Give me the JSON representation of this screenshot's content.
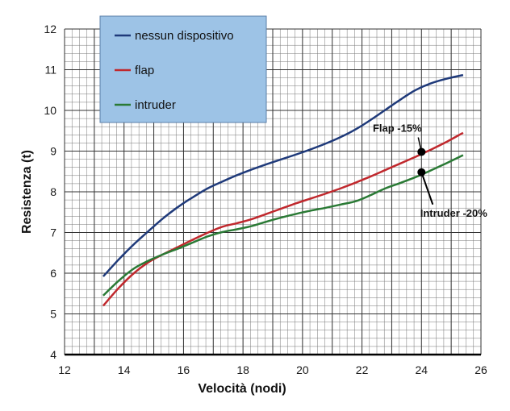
{
  "chart_data": {
    "type": "line",
    "title": "",
    "xlabel": "Velocità  (nodi)",
    "ylabel": "Resistenza (t)",
    "xlim": [
      12,
      26
    ],
    "ylim": [
      4,
      12
    ],
    "xticks": [
      12,
      14,
      16,
      18,
      20,
      22,
      24,
      26
    ],
    "yticks": [
      4,
      5,
      6,
      7,
      8,
      9,
      10,
      11,
      12
    ],
    "grid": true,
    "legend_position": "top-left",
    "series": [
      {
        "name": "nessun dispositivo",
        "color": "#1f3a7a",
        "x": [
          13.3,
          13.8,
          14.3,
          14.8,
          15.3,
          15.8,
          16.3,
          16.8,
          17.3,
          17.8,
          18.3,
          18.8,
          19.3,
          19.8,
          20.3,
          20.8,
          21.3,
          21.8,
          22.3,
          22.8,
          23.3,
          23.8,
          24.3,
          24.8,
          25.4
        ],
        "y": [
          5.92,
          6.32,
          6.69,
          7.02,
          7.34,
          7.62,
          7.86,
          8.08,
          8.25,
          8.41,
          8.55,
          8.68,
          8.8,
          8.92,
          9.05,
          9.19,
          9.35,
          9.54,
          9.77,
          10.02,
          10.27,
          10.5,
          10.66,
          10.77,
          10.87
        ]
      },
      {
        "name": "flap",
        "color": "#c0282d",
        "x": [
          13.3,
          13.8,
          14.3,
          14.8,
          15.3,
          15.8,
          16.3,
          16.8,
          17.3,
          17.8,
          18.3,
          18.8,
          19.3,
          19.8,
          20.3,
          20.8,
          21.3,
          21.8,
          22.3,
          22.8,
          23.3,
          23.8,
          24.3,
          24.8,
          25.4
        ],
        "y": [
          5.2,
          5.62,
          5.98,
          6.26,
          6.46,
          6.64,
          6.82,
          6.99,
          7.14,
          7.23,
          7.33,
          7.46,
          7.59,
          7.72,
          7.84,
          7.96,
          8.09,
          8.23,
          8.38,
          8.54,
          8.7,
          8.86,
          9.03,
          9.21,
          9.45
        ]
      },
      {
        "name": "intruder",
        "color": "#2a7a35",
        "x": [
          13.3,
          13.8,
          14.3,
          14.8,
          15.3,
          15.8,
          16.3,
          16.8,
          17.3,
          17.8,
          18.3,
          18.8,
          19.3,
          19.8,
          20.3,
          20.8,
          21.3,
          21.8,
          22.3,
          22.8,
          23.3,
          23.8,
          24.3,
          24.8,
          25.4
        ],
        "y": [
          5.45,
          5.8,
          6.1,
          6.3,
          6.46,
          6.6,
          6.75,
          6.9,
          7.01,
          7.08,
          7.16,
          7.27,
          7.37,
          7.46,
          7.54,
          7.61,
          7.69,
          7.77,
          7.92,
          8.09,
          8.22,
          8.36,
          8.52,
          8.69,
          8.9
        ]
      }
    ],
    "annotations": [
      {
        "text": "Flap -15%",
        "x": 24.0,
        "y": 8.98
      },
      {
        "text": "Intruder -20%",
        "x": 24.0,
        "y": 8.48
      }
    ]
  }
}
